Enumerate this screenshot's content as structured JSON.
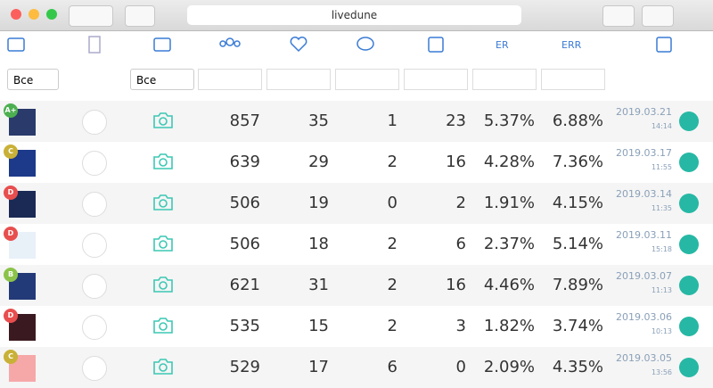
{
  "browser": {
    "url": "livedune"
  },
  "filters": {
    "type": "Все",
    "media": "Все"
  },
  "table": {
    "header": {
      "er": "ER",
      "err": "ERR"
    },
    "rows": [
      {
        "grade": "A+",
        "reach": 857,
        "likes": 35,
        "comments": 1,
        "saves": 23,
        "er": "5.37%",
        "err": "6.88%",
        "date": "2019.03.21",
        "time": "14:14"
      },
      {
        "grade": "C",
        "reach": 639,
        "likes": 29,
        "comments": 2,
        "saves": 16,
        "er": "4.28%",
        "err": "7.36%",
        "date": "2019.03.17",
        "time": "11:55"
      },
      {
        "grade": "D",
        "reach": 506,
        "likes": 19,
        "comments": 0,
        "saves": 2,
        "er": "1.91%",
        "err": "4.15%",
        "date": "2019.03.14",
        "time": "11:35"
      },
      {
        "grade": "D",
        "reach": 506,
        "likes": 18,
        "comments": 2,
        "saves": 6,
        "er": "2.37%",
        "err": "5.14%",
        "date": "2019.03.11",
        "time": "15:18"
      },
      {
        "grade": "B",
        "reach": 621,
        "likes": 31,
        "comments": 2,
        "saves": 16,
        "er": "4.46%",
        "err": "7.89%",
        "date": "2019.03.07",
        "time": "11:13"
      },
      {
        "grade": "D",
        "reach": 535,
        "likes": 15,
        "comments": 2,
        "saves": 3,
        "er": "1.82%",
        "err": "3.74%",
        "date": "2019.03.06",
        "time": "10:13"
      },
      {
        "grade": "C",
        "reach": 529,
        "likes": 17,
        "comments": 6,
        "saves": 0,
        "er": "2.09%",
        "err": "4.35%",
        "date": "2019.03.05",
        "time": "13:56"
      }
    ]
  }
}
